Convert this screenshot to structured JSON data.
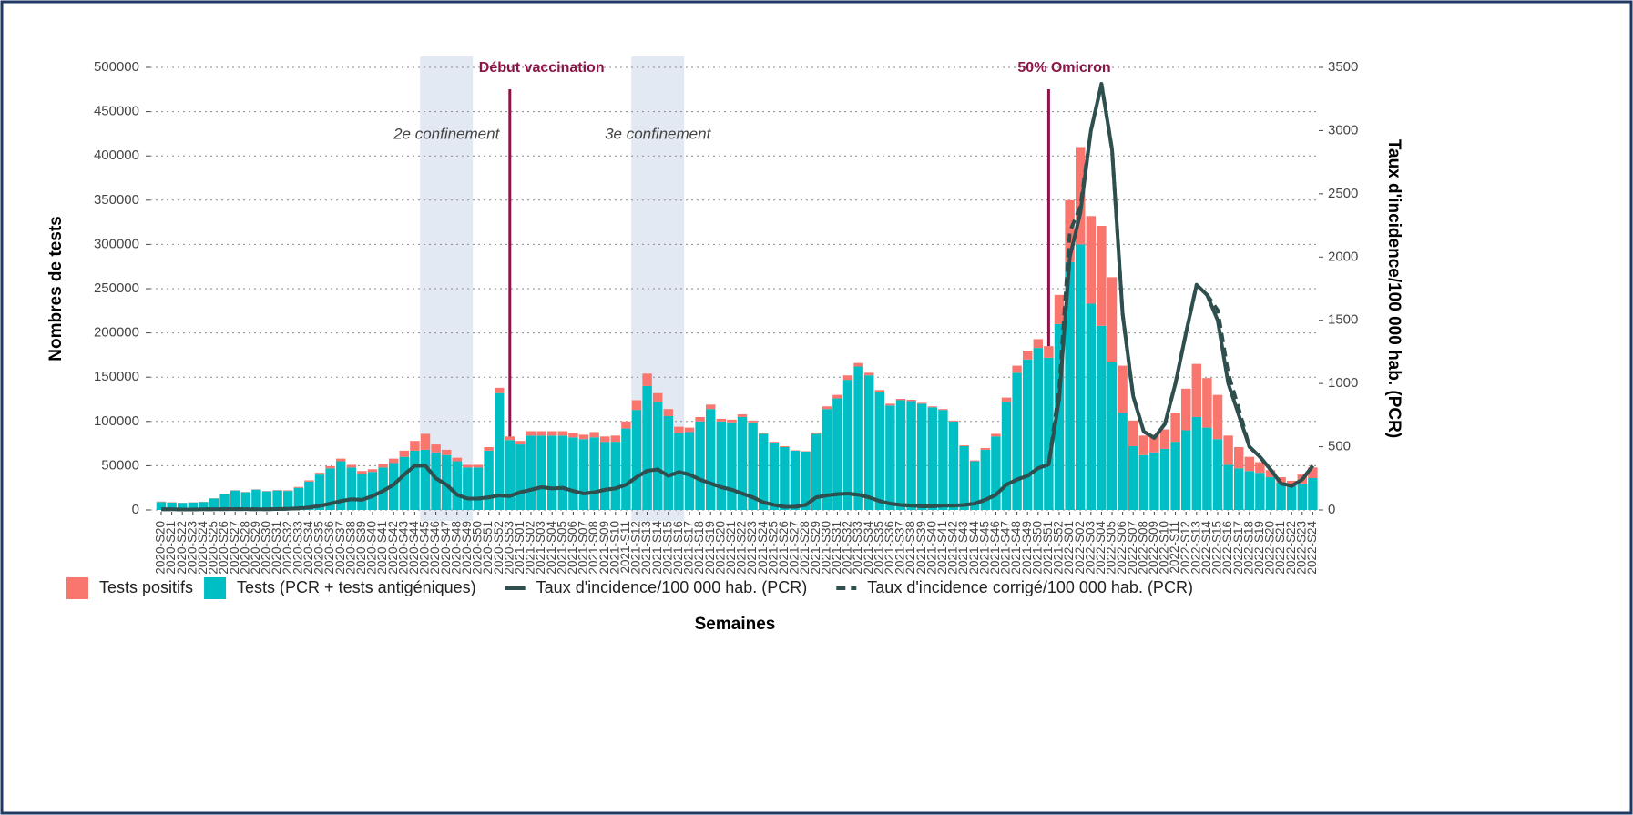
{
  "chart_data": {
    "type": "bar_line",
    "x_label": "Semaines",
    "y_label": "Nombres de tests",
    "y2_label": "Taux d'incidence/100 000 hab. (PCR)",
    "categories": [
      "2020-S20",
      "2020-S21",
      "2020-S22",
      "2020-S23",
      "2020-S24",
      "2020-S25",
      "2020-S26",
      "2020-S27",
      "2020-S28",
      "2020-S29",
      "2020-S30",
      "2020-S31",
      "2020-S32",
      "2020-S33",
      "2020-S34",
      "2020-S35",
      "2020-S36",
      "2020-S37",
      "2020-S38",
      "2020-S39",
      "2020-S40",
      "2020-S41",
      "2020-S42",
      "2020-S43",
      "2020-S44",
      "2020-S45",
      "2020-S46",
      "2020-S47",
      "2020-S48",
      "2020-S49",
      "2020-S50",
      "2020-S51",
      "2020-S52",
      "2020-S53",
      "2021-S01",
      "2021-S02",
      "2021-S03",
      "2021-S04",
      "2021-S05",
      "2021-S06",
      "2021-S07",
      "2021-S08",
      "2021-S09",
      "2021-S10",
      "2021-S11",
      "2021-S12",
      "2021-S13",
      "2021-S14",
      "2021-S15",
      "2021-S16",
      "2021-S17",
      "2021-S18",
      "2021-S19",
      "2021-S20",
      "2021-S21",
      "2021-S22",
      "2021-S23",
      "2021-S24",
      "2021-S25",
      "2021-S26",
      "2021-S27",
      "2021-S28",
      "2021-S29",
      "2021-S30",
      "2021-S31",
      "2021-S32",
      "2021-S33",
      "2021-S34",
      "2021-S35",
      "2021-S36",
      "2021-S37",
      "2021-S38",
      "2021-S39",
      "2021-S40",
      "2021-S41",
      "2021-S42",
      "2021-S43",
      "2021-S44",
      "2021-S45",
      "2021-S46",
      "2021-S47",
      "2021-S48",
      "2021-S49",
      "2021-S50",
      "2021-S51",
      "2021-S52",
      "2022-S01",
      "2022-S02",
      "2022-S03",
      "2022-S04",
      "2022-S05",
      "2022-S06",
      "2022-S07",
      "2022-S08",
      "2022-S09",
      "2022-S10",
      "2022-S11",
      "2022-S12",
      "2022-S13",
      "2022-S14",
      "2022-S15",
      "2022-S16",
      "2022-S17",
      "2022-S18",
      "2022-S19",
      "2022-S20",
      "2022-S21",
      "2022-S22",
      "2022-S23",
      "2022-S24"
    ],
    "series": [
      {
        "name": "Tests (PCR + tests antigéniques)",
        "color": "#00bfc4",
        "kind": "bar",
        "values": [
          9000,
          8500,
          8000,
          8500,
          9000,
          13000,
          18000,
          22000,
          20000,
          23000,
          21000,
          22000,
          21500,
          25000,
          32000,
          40000,
          47000,
          55000,
          48000,
          41000,
          43000,
          48000,
          53000,
          60000,
          67000,
          68000,
          65000,
          62000,
          55000,
          48000,
          48000,
          67000,
          132000,
          79000,
          74000,
          84000,
          84000,
          84000,
          84000,
          82000,
          80000,
          82000,
          77000,
          77000,
          92000,
          113000,
          140000,
          122000,
          106000,
          87000,
          88000,
          100000,
          114000,
          100000,
          99000,
          105000,
          99000,
          86000,
          76000,
          71000,
          67000,
          66000,
          86000,
          114000,
          126000,
          147000,
          162000,
          152000,
          133000,
          118000,
          124000,
          123000,
          120000,
          116000,
          113000,
          100000,
          72000,
          55000,
          68000,
          83000,
          122000,
          155000,
          170000,
          183000,
          172000,
          210000,
          280000,
          300000,
          233000,
          208000,
          167000,
          110000,
          72000,
          62000,
          65000,
          69000,
          77000,
          90000,
          105000,
          93000,
          80000,
          51000,
          47000,
          44000,
          42000,
          37000,
          31000,
          27000,
          30000,
          36000
        ]
      },
      {
        "name": "Tests positifs",
        "color": "#f8766d",
        "kind": "bar",
        "values": [
          500,
          300,
          200,
          200,
          200,
          200,
          200,
          300,
          300,
          300,
          400,
          500,
          700,
          1000,
          1500,
          2000,
          2500,
          3000,
          3000,
          3000,
          3000,
          4000,
          5000,
          7000,
          11000,
          18000,
          9000,
          6000,
          4000,
          3000,
          3000,
          4000,
          6000,
          4000,
          4000,
          5000,
          5000,
          5000,
          5000,
          5000,
          5000,
          6000,
          6000,
          7000,
          8000,
          11000,
          14000,
          10000,
          8000,
          7000,
          5000,
          5000,
          5000,
          3000,
          3000,
          3000,
          2000,
          1500,
          1000,
          1000,
          500,
          500,
          1500,
          3000,
          4000,
          5000,
          4000,
          3000,
          2500,
          2000,
          1500,
          1500,
          1000,
          1000,
          1000,
          1000,
          1000,
          1000,
          2000,
          3000,
          5000,
          8000,
          10000,
          10000,
          13000,
          33000,
          70000,
          110000,
          99000,
          113000,
          96000,
          53000,
          29000,
          22000,
          20000,
          22000,
          33000,
          47000,
          60000,
          56000,
          50000,
          33000,
          24000,
          16000,
          12000,
          8000,
          6000,
          6000,
          10000,
          12000
        ]
      },
      {
        "name": "Taux d'incidence/100 000 hab. (PCR)",
        "color": "#2f4f4f",
        "kind": "line",
        "line_style": "solid",
        "axis": "y2",
        "values": [
          5,
          5,
          4,
          4,
          5,
          5,
          6,
          6,
          6,
          5,
          5,
          7,
          9,
          13,
          20,
          32,
          50,
          70,
          85,
          80,
          110,
          150,
          200,
          280,
          350,
          350,
          250,
          200,
          120,
          90,
          90,
          100,
          115,
          110,
          140,
          160,
          180,
          170,
          175,
          150,
          130,
          140,
          160,
          170,
          200,
          260,
          310,
          320,
          270,
          300,
          280,
          240,
          210,
          180,
          160,
          130,
          100,
          60,
          40,
          25,
          25,
          40,
          100,
          115,
          125,
          130,
          120,
          100,
          70,
          50,
          40,
          35,
          30,
          30,
          35,
          35,
          40,
          50,
          80,
          120,
          200,
          240,
          270,
          330,
          360,
          880,
          2000,
          2350,
          3000,
          3370,
          2850,
          1550,
          900,
          620,
          570,
          680,
          1000,
          1400,
          1780,
          1700,
          1500,
          1000,
          750,
          500,
          420,
          320,
          210,
          190,
          240,
          350
        ]
      },
      {
        "name": "Taux d'incidence corrigé/100 000 hab. (PCR)",
        "color": "#2f4f4f",
        "kind": "line",
        "line_style": "dashed",
        "axis": "y2",
        "values": [
          5,
          5,
          4,
          4,
          5,
          5,
          6,
          6,
          6,
          5,
          5,
          7,
          9,
          13,
          20,
          32,
          50,
          70,
          85,
          80,
          110,
          150,
          200,
          280,
          350,
          350,
          250,
          200,
          120,
          90,
          90,
          100,
          115,
          110,
          140,
          160,
          180,
          170,
          175,
          150,
          130,
          140,
          160,
          170,
          200,
          260,
          310,
          320,
          270,
          300,
          280,
          240,
          210,
          180,
          160,
          130,
          100,
          60,
          40,
          25,
          25,
          40,
          100,
          115,
          125,
          130,
          120,
          100,
          70,
          50,
          40,
          35,
          30,
          30,
          35,
          35,
          40,
          50,
          80,
          120,
          200,
          240,
          270,
          330,
          360,
          960,
          2200,
          2400,
          3000,
          3370,
          2850,
          1550,
          900,
          620,
          570,
          680,
          1000,
          1400,
          1780,
          1700,
          1580,
          1080,
          800,
          500,
          420,
          320,
          210,
          190,
          240,
          350
        ]
      }
    ],
    "ylim": [
      0,
      500000
    ],
    "yticks": [
      0,
      50000,
      100000,
      150000,
      200000,
      250000,
      300000,
      350000,
      400000,
      450000,
      500000
    ],
    "y2lim": [
      0,
      3500
    ],
    "y2ticks": [
      0,
      500,
      1000,
      1500,
      2000,
      2500,
      3000,
      3500
    ],
    "grid": true,
    "legend": "bottom",
    "annotations": [
      {
        "text": "Début vaccination",
        "category": "2020-S53",
        "color": "#8b1548"
      },
      {
        "text": "50% Omicron",
        "category": "2021-S51",
        "color": "#8b1548"
      }
    ],
    "shaded_periods": [
      {
        "label": "2e confinement",
        "start": "2020-S45",
        "end": "2020-S49",
        "color": "#e3e9f2"
      },
      {
        "label": "3e confinement",
        "start": "2021-S12",
        "end": "2021-S16",
        "color": "#e3e9f2"
      }
    ]
  }
}
